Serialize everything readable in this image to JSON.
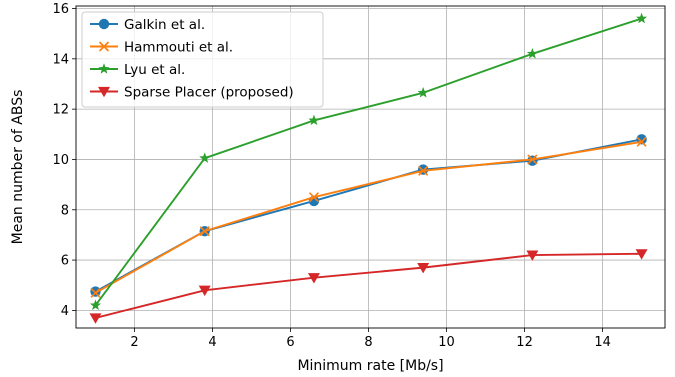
{
  "chart_data": {
    "type": "line",
    "xlabel": "Minimum rate [Mb/s]",
    "ylabel": "Mean number of ABSs",
    "xlim": [
      0.5,
      15.6
    ],
    "ylim": [
      3.3,
      16.1
    ],
    "xticks": [
      2,
      4,
      6,
      8,
      10,
      12,
      14
    ],
    "yticks": [
      4,
      6,
      8,
      10,
      12,
      14,
      16
    ],
    "grid": true,
    "legend_position": "top-left",
    "x": [
      1,
      3.8,
      6.6,
      9.4,
      12.2,
      15
    ],
    "series": [
      {
        "name": "Galkin et al.",
        "color": "#1f77b4",
        "marker": "circle",
        "values": [
          4.75,
          7.15,
          8.35,
          9.6,
          9.95,
          10.8
        ]
      },
      {
        "name": "Hammouti et al.",
        "color": "#ff7f0e",
        "marker": "x",
        "values": [
          4.7,
          7.15,
          8.5,
          9.55,
          10.0,
          10.7
        ]
      },
      {
        "name": "Lyu et al.",
        "color": "#2ca02c",
        "marker": "star",
        "values": [
          4.2,
          10.05,
          11.55,
          12.65,
          14.2,
          15.6
        ]
      },
      {
        "name": "Sparse Placer (proposed)",
        "color": "#d62728",
        "marker": "triangle-down",
        "values": [
          3.7,
          4.8,
          5.3,
          5.7,
          6.2,
          6.25
        ]
      }
    ]
  }
}
